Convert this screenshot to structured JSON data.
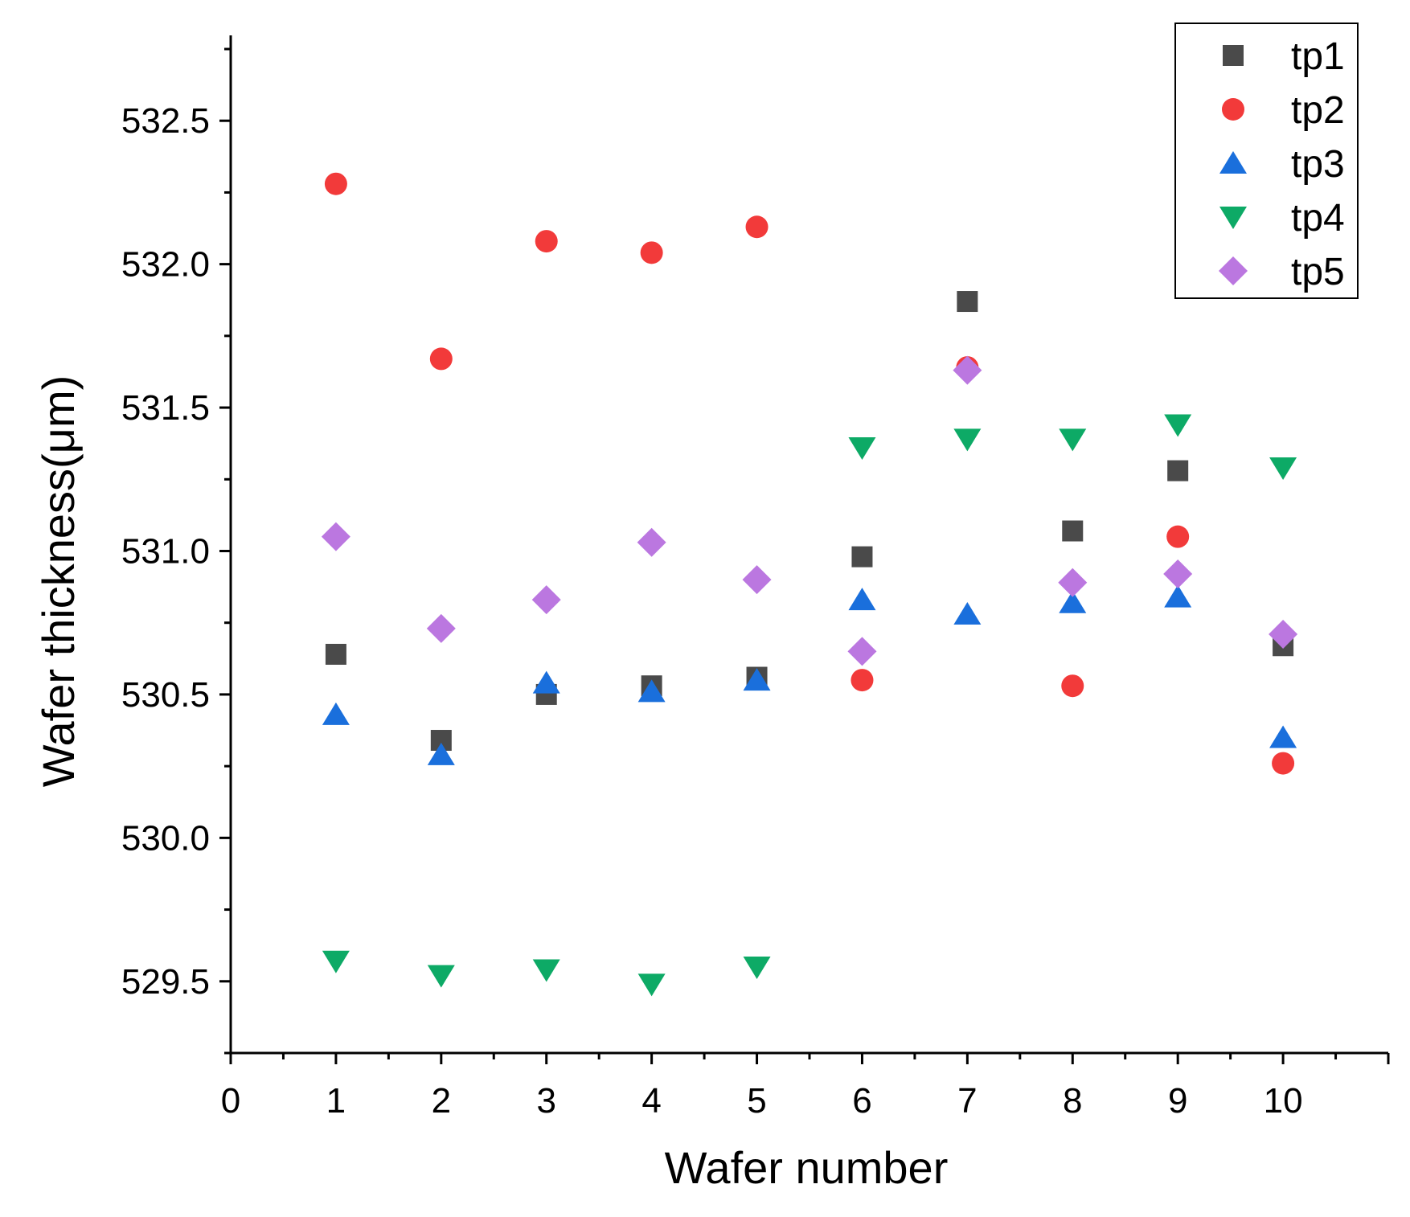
{
  "chart_data": {
    "type": "scatter",
    "title": "",
    "xlabel": "Wafer number",
    "ylabel": "Wafer thickness(μm)",
    "xlim": [
      0,
      11
    ],
    "ylim": [
      529.25,
      532.75
    ],
    "x_ticks": [
      "0",
      "1",
      "2",
      "3",
      "4",
      "5",
      "6",
      "7",
      "8",
      "9",
      "10"
    ],
    "y_ticks": [
      "529.5",
      "530.0",
      "530.5",
      "531.0",
      "531.5",
      "532.0",
      "532.5"
    ],
    "legend_position": "top-right",
    "x": [
      1,
      2,
      3,
      4,
      5,
      6,
      7,
      8,
      9,
      10
    ],
    "series": [
      {
        "name": "tp1",
        "marker": "square",
        "color": "#4a4a4a",
        "values": [
          530.64,
          530.34,
          530.5,
          530.53,
          530.56,
          530.98,
          531.87,
          531.07,
          531.28,
          530.67
        ]
      },
      {
        "name": "tp2",
        "marker": "circle",
        "color": "#f23a3a",
        "values": [
          532.28,
          531.67,
          532.08,
          532.04,
          532.13,
          530.55,
          531.64,
          530.53,
          531.05,
          530.26
        ]
      },
      {
        "name": "tp3",
        "marker": "triangle-up",
        "color": "#1a6fdc",
        "values": [
          530.43,
          530.29,
          530.54,
          530.51,
          530.55,
          530.83,
          530.78,
          530.82,
          530.84,
          530.35
        ]
      },
      {
        "name": "tp4",
        "marker": "triangle-down",
        "color": "#0daa66",
        "values": [
          529.57,
          529.52,
          529.54,
          529.49,
          529.55,
          531.36,
          531.39,
          531.39,
          531.44,
          531.29
        ]
      },
      {
        "name": "tp5",
        "marker": "diamond",
        "color": "#bb77e0",
        "values": [
          531.05,
          530.73,
          530.83,
          531.03,
          530.9,
          530.65,
          531.63,
          530.89,
          530.92,
          530.71
        ]
      }
    ]
  }
}
